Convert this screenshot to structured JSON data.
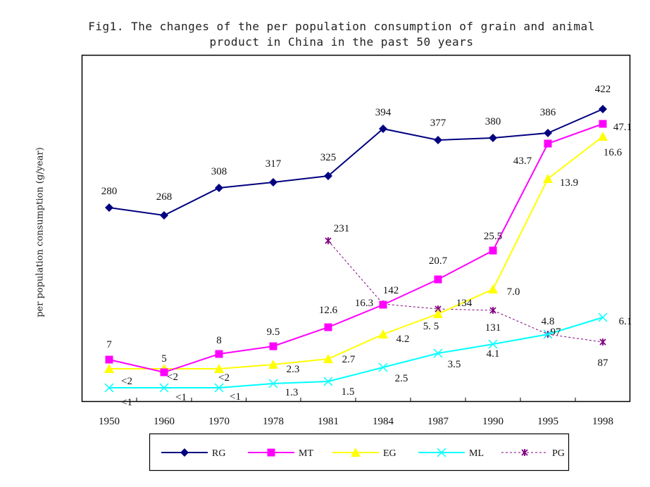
{
  "chart_data": {
    "type": "line",
    "title": "Fig1. The changes of the per population consumption of grain and animal product in China in the past 50 years",
    "title_lines": [
      "Fig1. The changes of the per population consumption of grain and animal",
      "product in China in the past 50 years"
    ],
    "xlabel": "",
    "ylabel": "per population consumption (g/year)",
    "grid": false,
    "legend_position": "bottom",
    "categories": [
      "1950",
      "1960",
      "1970",
      "1978",
      "1981",
      "1984",
      "1987",
      "1990",
      "1995",
      "1998"
    ],
    "series": [
      {
        "name": "RG",
        "color": "#000080",
        "marker": "diamond",
        "dash": false,
        "values": [
          280,
          268,
          308,
          317,
          325,
          394,
          377,
          380,
          386,
          422
        ],
        "labels": [
          "280",
          "268",
          "308",
          "317",
          "325",
          "394",
          "377",
          "380",
          "386",
          "422"
        ]
      },
      {
        "name": "MT",
        "color": "#FF00FF",
        "marker": "square",
        "dash": false,
        "values": [
          7,
          5,
          8,
          9.5,
          12.6,
          16.3,
          20.7,
          25.5,
          43.7,
          47.1
        ],
        "labels": [
          "7",
          "5",
          "8",
          "9.5",
          "12.6",
          "16.3",
          "20.7",
          "25.5",
          "43.7",
          "47.1"
        ]
      },
      {
        "name": "EG",
        "color": "#FFFF00",
        "marker": "triangle",
        "dash": false,
        "values": [
          null,
          null,
          null,
          2.3,
          2.7,
          4.2,
          5.5,
          7.0,
          13.9,
          16.6
        ],
        "labels": [
          "<2",
          "<2",
          "<2",
          "2.3",
          "2.7",
          "4.2",
          "5. 5",
          "7.0",
          "13.9",
          "16.6"
        ]
      },
      {
        "name": "ML",
        "color": "#00FFFF",
        "marker": "x",
        "dash": false,
        "values": [
          null,
          null,
          null,
          1.3,
          1.5,
          2.5,
          3.5,
          4.1,
          4.8,
          6.1
        ],
        "labels": [
          "<1",
          "<1",
          "<1",
          "1.3",
          "1.5",
          "2.5",
          "3.5",
          "4.1",
          "4.8",
          "6.1"
        ]
      },
      {
        "name": "PG",
        "color": "#800080",
        "marker": "asterisk",
        "dash": true,
        "values": [
          null,
          null,
          null,
          null,
          231,
          142,
          134,
          131,
          97,
          87
        ],
        "labels": [
          null,
          null,
          null,
          null,
          "231",
          "142",
          "134",
          "131",
          "97",
          "87"
        ]
      }
    ]
  }
}
